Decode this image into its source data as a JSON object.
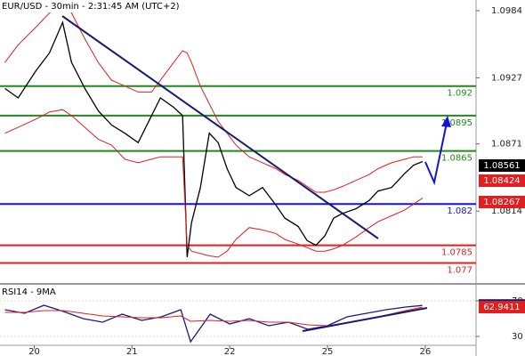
{
  "chart_data": [
    {
      "type": "line",
      "title": "EUR/USD - 30min - 2:31:45 AM (UTC+2)",
      "x": [
        -0.3,
        -0.164,
        0.018,
        0.155,
        0.291,
        0.382,
        0.518,
        0.655,
        0.791,
        0.927,
        1.064,
        1.2,
        1.291,
        1.427,
        1.518,
        1.564,
        1.609,
        1.7,
        1.791,
        1.882,
        1.973,
        2.064,
        2.2,
        2.336,
        2.473,
        2.564,
        2.7,
        2.791,
        2.882,
        2.973,
        3.064,
        3.155,
        3.291,
        3.427,
        3.518,
        3.655,
        3.791,
        3.882,
        3.973
      ],
      "series": [
        {
          "color": "#000000",
          "values": [
            1.0918,
            1.091,
            1.0933,
            1.0948,
            1.0974,
            1.094,
            1.0918,
            1.0899,
            1.0887,
            1.088,
            1.0872,
            1.0895,
            1.091,
            1.0902,
            1.0895,
            1.0775,
            1.0804,
            1.0834,
            1.088,
            1.0872,
            1.085,
            1.0834,
            1.0827,
            1.0834,
            1.0819,
            1.0808,
            1.0801,
            1.0789,
            1.0785,
            1.0793,
            1.0808,
            1.0812,
            1.0816,
            1.0823,
            1.0831,
            1.0834,
            1.0846,
            1.0853,
            1.0856
          ]
        },
        {
          "color": "#e02020",
          "values": [
            1.094,
            1.0955,
            1.097,
            1.0982,
            1.099,
            1.0982,
            1.096,
            1.094,
            1.0925,
            1.092,
            1.0915,
            1.0915,
            1.0925,
            1.094,
            1.095,
            1.0948,
            1.094,
            1.092,
            1.0905,
            1.089,
            1.088,
            1.087,
            1.086,
            1.0855,
            1.085,
            1.0845,
            1.084,
            1.0835,
            1.083,
            1.083,
            1.0832,
            1.0835,
            1.084,
            1.0845,
            1.085,
            1.0855,
            1.0858,
            1.086,
            1.086
          ]
        },
        {
          "color": "#e02020",
          "values": [
            1.088,
            1.0885,
            1.0892,
            1.0898,
            1.09,
            1.0895,
            1.0885,
            1.0875,
            1.087,
            1.0858,
            1.0855,
            1.0858,
            1.086,
            1.086,
            1.086,
            1.0785,
            1.078,
            1.0778,
            1.0776,
            1.0775,
            1.078,
            1.079,
            1.08,
            1.0798,
            1.0795,
            1.079,
            1.0786,
            1.0783,
            1.078,
            1.078,
            1.0782,
            1.0785,
            1.0792,
            1.08,
            1.0805,
            1.081,
            1.0815,
            1.082,
            1.0825
          ]
        }
      ],
      "levels": [
        1.092,
        1.0895,
        1.0865,
        1.082,
        1.0785,
        1.077
      ],
      "level_colors": [
        "#1e8a1e",
        "#1e8a1e",
        "#1e8a1e",
        "#1414d2",
        "#e02020",
        "#e02020"
      ],
      "price_tags": [
        1.08561,
        1.08424,
        1.08267
      ],
      "price_tag_colors": [
        "#000000",
        "#e02020",
        "#e02020"
      ],
      "ylim": [
        1.0753,
        1.0993
      ],
      "yticks": [
        1.0984,
        1.0927,
        1.0871,
        1.0814
      ],
      "xlim": [
        -0.35,
        4.52
      ],
      "xticks": [
        {
          "value": 0,
          "label": "20"
        },
        {
          "value": 1,
          "label": "21"
        },
        {
          "value": 2,
          "label": "22"
        },
        {
          "value": 3,
          "label": "25"
        },
        {
          "value": 4,
          "label": "26"
        }
      ]
    },
    {
      "type": "line",
      "title": "RSI14 - 9MA",
      "x": [
        -0.3,
        -0.1,
        0.1,
        0.3,
        0.5,
        0.7,
        0.9,
        1.1,
        1.3,
        1.5,
        1.6,
        1.8,
        2.0,
        2.2,
        2.4,
        2.6,
        2.8,
        3.0,
        3.2,
        3.4,
        3.6,
        3.8,
        3.97
      ],
      "series": [
        {
          "color": "#1a1a8c",
          "values": [
            60,
            56,
            65,
            58,
            50,
            46,
            55,
            48,
            52,
            60,
            24,
            55,
            44,
            50,
            42,
            46,
            38,
            42,
            52,
            56,
            60,
            63,
            64.8009
          ]
        },
        {
          "color": "#e02020",
          "values": [
            57,
            57,
            59,
            59,
            56,
            53,
            52,
            51,
            51,
            53,
            47,
            48,
            47,
            48,
            46,
            46,
            43,
            42,
            45,
            49,
            54,
            59,
            62.9411
          ]
        }
      ],
      "price_tags": [
        64.8009,
        62.9411
      ],
      "price_tag_colors": [
        "#1a1a6e",
        "#e02020"
      ],
      "ylim": [
        20,
        86
      ],
      "yticks": [
        70,
        30
      ]
    }
  ]
}
